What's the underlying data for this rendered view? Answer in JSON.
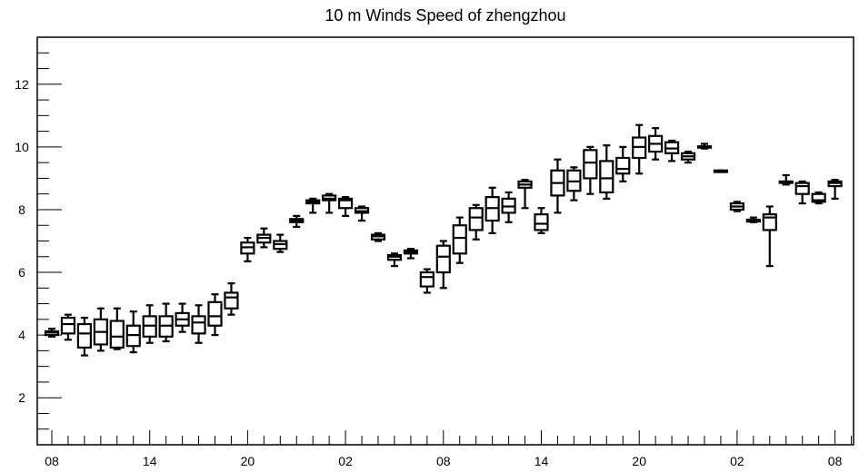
{
  "chart_data": {
    "type": "box",
    "title": "10 m Winds Speed of zhengzhou",
    "xlabel": "",
    "ylabel": "",
    "ylim": [
      0.5,
      13.5
    ],
    "y_ticks": [
      2,
      4,
      6,
      8,
      10,
      12
    ],
    "x_tick_labels": [
      "08",
      "14",
      "20",
      "02",
      "08",
      "14",
      "20",
      "02",
      "08"
    ],
    "grid": false,
    "boxes": [
      {
        "x": 0,
        "min": 3.95,
        "q1": 4.0,
        "median": 4.08,
        "q3": 4.12,
        "max": 4.2
      },
      {
        "x": 1,
        "min": 3.85,
        "q1": 4.05,
        "median": 4.35,
        "q3": 4.55,
        "max": 4.65
      },
      {
        "x": 2,
        "min": 3.35,
        "q1": 3.6,
        "median": 4.05,
        "q3": 4.35,
        "max": 4.55
      },
      {
        "x": 3,
        "min": 3.5,
        "q1": 3.7,
        "median": 4.1,
        "q3": 4.5,
        "max": 4.85
      },
      {
        "x": 4,
        "min": 3.55,
        "q1": 3.6,
        "median": 3.95,
        "q3": 4.45,
        "max": 4.85
      },
      {
        "x": 5,
        "min": 3.45,
        "q1": 3.65,
        "median": 4.0,
        "q3": 4.3,
        "max": 4.75
      },
      {
        "x": 6,
        "min": 3.75,
        "q1": 3.95,
        "median": 4.3,
        "q3": 4.6,
        "max": 4.95
      },
      {
        "x": 7,
        "min": 3.8,
        "q1": 3.95,
        "median": 4.3,
        "q3": 4.6,
        "max": 5.0
      },
      {
        "x": 8,
        "min": 4.1,
        "q1": 4.3,
        "median": 4.5,
        "q3": 4.7,
        "max": 5.0
      },
      {
        "x": 9,
        "min": 3.75,
        "q1": 4.05,
        "median": 4.4,
        "q3": 4.6,
        "max": 4.95
      },
      {
        "x": 10,
        "min": 4.0,
        "q1": 4.3,
        "median": 4.6,
        "q3": 5.05,
        "max": 5.3
      },
      {
        "x": 11,
        "min": 4.65,
        "q1": 4.85,
        "median": 5.2,
        "q3": 5.35,
        "max": 5.65
      },
      {
        "x": 12,
        "min": 6.35,
        "q1": 6.6,
        "median": 6.8,
        "q3": 6.95,
        "max": 7.1
      },
      {
        "x": 13,
        "min": 6.8,
        "q1": 6.95,
        "median": 7.1,
        "q3": 7.2,
        "max": 7.4
      },
      {
        "x": 14,
        "min": 6.65,
        "q1": 6.75,
        "median": 6.9,
        "q3": 7.0,
        "max": 7.2
      },
      {
        "x": 15,
        "min": 7.45,
        "q1": 7.6,
        "median": 7.65,
        "q3": 7.7,
        "max": 7.8
      },
      {
        "x": 16,
        "min": 7.9,
        "q1": 8.2,
        "median": 8.25,
        "q3": 8.3,
        "max": 8.35
      },
      {
        "x": 17,
        "min": 7.9,
        "q1": 8.3,
        "median": 8.35,
        "q3": 8.45,
        "max": 8.5
      },
      {
        "x": 18,
        "min": 7.8,
        "q1": 8.05,
        "median": 8.3,
        "q3": 8.35,
        "max": 8.4
      },
      {
        "x": 19,
        "min": 7.65,
        "q1": 7.9,
        "median": 7.95,
        "q3": 8.05,
        "max": 8.1
      },
      {
        "x": 20,
        "min": 7.0,
        "q1": 7.05,
        "median": 7.15,
        "q3": 7.2,
        "max": 7.25
      },
      {
        "x": 21,
        "min": 6.2,
        "q1": 6.4,
        "median": 6.5,
        "q3": 6.55,
        "max": 6.6
      },
      {
        "x": 22,
        "min": 6.45,
        "q1": 6.6,
        "median": 6.65,
        "q3": 6.7,
        "max": 6.75
      },
      {
        "x": 23,
        "min": 5.35,
        "q1": 5.55,
        "median": 5.85,
        "q3": 6.0,
        "max": 6.1
      },
      {
        "x": 24,
        "min": 5.5,
        "q1": 6.0,
        "median": 6.5,
        "q3": 6.85,
        "max": 7.0
      },
      {
        "x": 25,
        "min": 6.3,
        "q1": 6.6,
        "median": 7.1,
        "q3": 7.5,
        "max": 7.75
      },
      {
        "x": 26,
        "min": 7.05,
        "q1": 7.35,
        "median": 7.75,
        "q3": 8.05,
        "max": 8.15
      },
      {
        "x": 27,
        "min": 7.25,
        "q1": 7.65,
        "median": 8.05,
        "q3": 8.4,
        "max": 8.7
      },
      {
        "x": 28,
        "min": 7.6,
        "q1": 7.9,
        "median": 8.1,
        "q3": 8.35,
        "max": 8.55
      },
      {
        "x": 29,
        "min": 8.05,
        "q1": 8.7,
        "median": 8.8,
        "q3": 8.9,
        "max": 8.95
      },
      {
        "x": 30,
        "min": 7.25,
        "q1": 7.35,
        "median": 7.55,
        "q3": 7.85,
        "max": 8.05
      },
      {
        "x": 31,
        "min": 7.9,
        "q1": 8.45,
        "median": 8.85,
        "q3": 9.25,
        "max": 9.6
      },
      {
        "x": 32,
        "min": 8.3,
        "q1": 8.6,
        "median": 8.9,
        "q3": 9.25,
        "max": 9.35
      },
      {
        "x": 33,
        "min": 8.5,
        "q1": 9.0,
        "median": 9.5,
        "q3": 9.9,
        "max": 10.0
      },
      {
        "x": 34,
        "min": 8.35,
        "q1": 8.55,
        "median": 9.0,
        "q3": 9.55,
        "max": 10.05
      },
      {
        "x": 35,
        "min": 8.9,
        "q1": 9.15,
        "median": 9.3,
        "q3": 9.65,
        "max": 10.0
      },
      {
        "x": 36,
        "min": 9.15,
        "q1": 9.65,
        "median": 10.0,
        "q3": 10.3,
        "max": 10.7
      },
      {
        "x": 37,
        "min": 9.6,
        "q1": 9.85,
        "median": 10.1,
        "q3": 10.35,
        "max": 10.6
      },
      {
        "x": 38,
        "min": 9.55,
        "q1": 9.8,
        "median": 9.95,
        "q3": 10.15,
        "max": 10.2
      },
      {
        "x": 39,
        "min": 9.5,
        "q1": 9.6,
        "median": 9.7,
        "q3": 9.8,
        "max": 9.85
      },
      {
        "x": 40,
        "min": 9.95,
        "q1": 9.98,
        "median": 10.0,
        "q3": 10.02,
        "max": 10.1
      },
      {
        "x": 41,
        "min": 9.2,
        "q1": 9.2,
        "median": 9.22,
        "q3": 9.25,
        "max": 9.25
      },
      {
        "x": 42,
        "min": 7.95,
        "q1": 8.0,
        "median": 8.1,
        "q3": 8.2,
        "max": 8.25
      },
      {
        "x": 43,
        "min": 7.6,
        "q1": 7.62,
        "median": 7.65,
        "q3": 7.68,
        "max": 7.75
      },
      {
        "x": 44,
        "min": 6.2,
        "q1": 7.35,
        "median": 7.75,
        "q3": 7.85,
        "max": 8.1
      },
      {
        "x": 45,
        "min": 8.8,
        "q1": 8.85,
        "median": 8.88,
        "q3": 8.9,
        "max": 9.1
      },
      {
        "x": 46,
        "min": 8.2,
        "q1": 8.5,
        "median": 8.75,
        "q3": 8.85,
        "max": 8.9
      },
      {
        "x": 47,
        "min": 8.2,
        "q1": 8.25,
        "median": 8.3,
        "q3": 8.5,
        "max": 8.55
      },
      {
        "x": 48,
        "min": 8.35,
        "q1": 8.75,
        "median": 8.85,
        "q3": 8.9,
        "max": 8.95
      }
    ]
  }
}
